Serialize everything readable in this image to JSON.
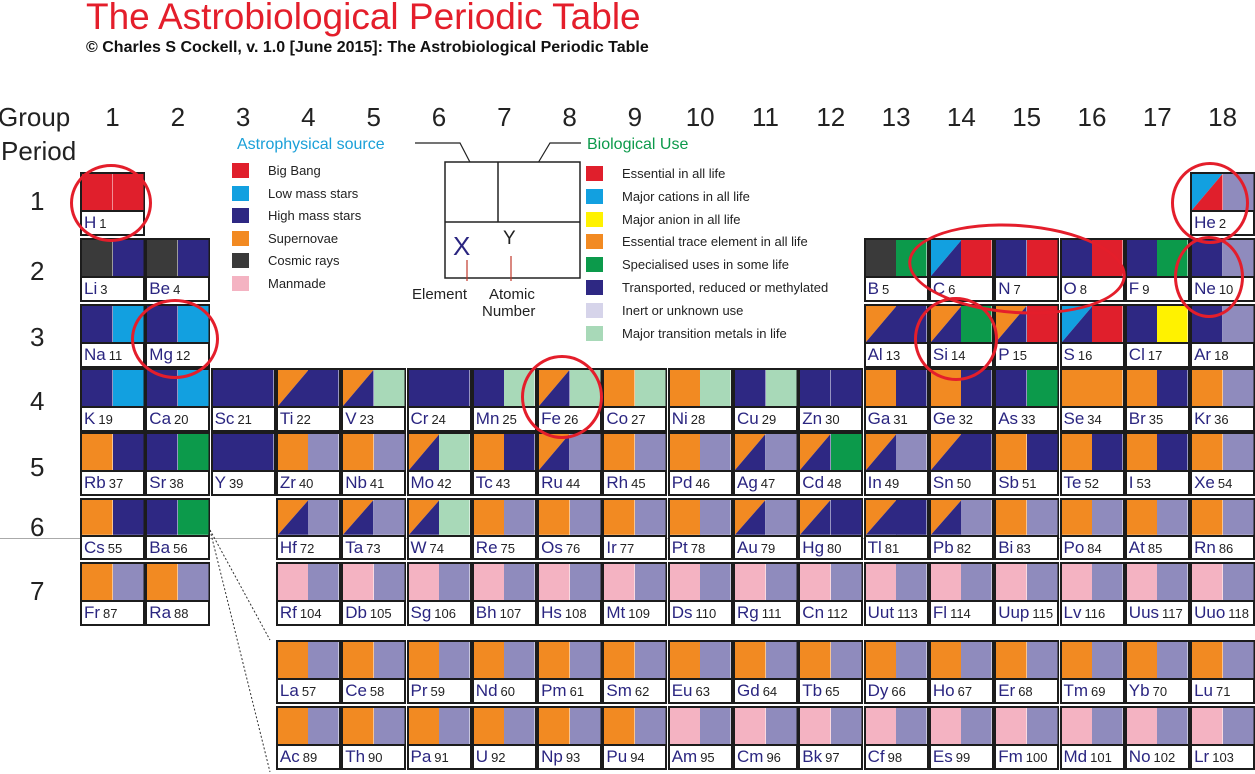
{
  "title": "The Astrobiological Periodic Table",
  "subtitle": "© Charles S Cockell, v. 1.0 [June 2015]: The Astrobiological Periodic Table",
  "labels": {
    "group": "Group",
    "period": "Period"
  },
  "groups": [
    "1",
    "2",
    "3",
    "4",
    "5",
    "6",
    "7",
    "8",
    "9",
    "10",
    "11",
    "12",
    "13",
    "14",
    "15",
    "16",
    "17",
    "18"
  ],
  "periods": [
    "1",
    "2",
    "3",
    "4",
    "5",
    "6",
    "7"
  ],
  "colors": {
    "R": "#e01f2c",
    "L": "#12a0e0",
    "D": "#2e2883",
    "O": "#f28a22",
    "K": "#3a3a3a",
    "P": "#f4b3c2",
    "Y": "#fff200",
    "G": "#0c9a4b",
    "V": "#8f8bbd",
    "M": "#a8d9b8",
    "W": "#ffffff"
  },
  "legend_source": {
    "title": "Astrophysical source",
    "title_color": "#1aa0d8",
    "items": [
      {
        "label": "Big Bang",
        "color": "#e01f2c"
      },
      {
        "label": "Low mass stars",
        "color": "#12a0e0"
      },
      {
        "label": "High mass stars",
        "color": "#2e2883"
      },
      {
        "label": "Supernovae",
        "color": "#f28a22"
      },
      {
        "label": "Cosmic rays",
        "color": "#3a3a3a"
      },
      {
        "label": "Manmade",
        "color": "#f4b3c2"
      }
    ]
  },
  "legend_use": {
    "title": "Biological Use",
    "title_color": "#0c9a4b",
    "items": [
      {
        "label": "Essential in all life",
        "color": "#e01f2c"
      },
      {
        "label": "Major cations in all life",
        "color": "#12a0e0"
      },
      {
        "label": "Major anion in all life",
        "color": "#fff200"
      },
      {
        "label": "Essential trace element in all life",
        "color": "#f28a22"
      },
      {
        "label": "Specialised uses in some life",
        "color": "#0c9a4b"
      },
      {
        "label": "Transported, reduced or methylated",
        "color": "#2e2883"
      },
      {
        "label": "Inert or unknown use",
        "color": "#d6d4ea"
      },
      {
        "label": "Major transition metals in life",
        "color": "#a8d9b8"
      }
    ]
  },
  "key": {
    "element_symbol": "X",
    "atomic_number": "Y",
    "element_label": "Element",
    "atomic_label": "Atomic",
    "number_label": "Number"
  },
  "elements": [
    {
      "s": "H",
      "n": "1",
      "g": 1,
      "p": 1,
      "a": "R",
      "b": "R"
    },
    {
      "s": "He",
      "n": "2",
      "g": 18,
      "p": 1,
      "a": "LR",
      "b": "V"
    },
    {
      "s": "Li",
      "n": "3",
      "g": 1,
      "p": 2,
      "a": "K",
      "b": "D"
    },
    {
      "s": "Be",
      "n": "4",
      "g": 2,
      "p": 2,
      "a": "K",
      "b": "D"
    },
    {
      "s": "B",
      "n": "5",
      "g": 13,
      "p": 2,
      "a": "K",
      "b": "G"
    },
    {
      "s": "C",
      "n": "6",
      "g": 14,
      "p": 2,
      "a": "LD",
      "b": "R"
    },
    {
      "s": "N",
      "n": "7",
      "g": 15,
      "p": 2,
      "a": "D",
      "b": "R"
    },
    {
      "s": "O",
      "n": "8",
      "g": 16,
      "p": 2,
      "a": "D",
      "b": "R"
    },
    {
      "s": "F",
      "n": "9",
      "g": 17,
      "p": 2,
      "a": "D",
      "b": "G"
    },
    {
      "s": "Ne",
      "n": "10",
      "g": 18,
      "p": 2,
      "a": "D",
      "b": "V"
    },
    {
      "s": "Na",
      "n": "11",
      "g": 1,
      "p": 3,
      "a": "D",
      "b": "L"
    },
    {
      "s": "Mg",
      "n": "12",
      "g": 2,
      "p": 3,
      "a": "D",
      "b": "L"
    },
    {
      "s": "Al",
      "n": "13",
      "g": 13,
      "p": 3,
      "a": "OD",
      "b": "D"
    },
    {
      "s": "Si",
      "n": "14",
      "g": 14,
      "p": 3,
      "a": "OD",
      "b": "G"
    },
    {
      "s": "P",
      "n": "15",
      "g": 15,
      "p": 3,
      "a": "OD",
      "b": "R"
    },
    {
      "s": "S",
      "n": "16",
      "g": 16,
      "p": 3,
      "a": "LD",
      "b": "R"
    },
    {
      "s": "Cl",
      "n": "17",
      "g": 17,
      "p": 3,
      "a": "D",
      "b": "Y"
    },
    {
      "s": "Ar",
      "n": "18",
      "g": 18,
      "p": 3,
      "a": "D",
      "b": "V"
    },
    {
      "s": "K",
      "n": "19",
      "g": 1,
      "p": 4,
      "a": "D",
      "b": "L"
    },
    {
      "s": "Ca",
      "n": "20",
      "g": 2,
      "p": 4,
      "a": "D",
      "b": "L"
    },
    {
      "s": "Sc",
      "n": "21",
      "g": 3,
      "p": 4,
      "a": "D",
      "b": "D"
    },
    {
      "s": "Ti",
      "n": "22",
      "g": 4,
      "p": 4,
      "a": "OD",
      "b": "D"
    },
    {
      "s": "V",
      "n": "23",
      "g": 5,
      "p": 4,
      "a": "OD",
      "b": "M"
    },
    {
      "s": "Cr",
      "n": "24",
      "g": 6,
      "p": 4,
      "a": "D",
      "b": "D"
    },
    {
      "s": "Mn",
      "n": "25",
      "g": 7,
      "p": 4,
      "a": "D",
      "b": "M"
    },
    {
      "s": "Fe",
      "n": "26",
      "g": 8,
      "p": 4,
      "a": "OD",
      "b": "M"
    },
    {
      "s": "Co",
      "n": "27",
      "g": 9,
      "p": 4,
      "a": "O",
      "b": "M"
    },
    {
      "s": "Ni",
      "n": "28",
      "g": 10,
      "p": 4,
      "a": "O",
      "b": "M"
    },
    {
      "s": "Cu",
      "n": "29",
      "g": 11,
      "p": 4,
      "a": "D",
      "b": "M"
    },
    {
      "s": "Zn",
      "n": "30",
      "g": 12,
      "p": 4,
      "a": "D",
      "b": "D"
    },
    {
      "s": "Ga",
      "n": "31",
      "g": 13,
      "p": 4,
      "a": "O",
      "b": "D"
    },
    {
      "s": "Ge",
      "n": "32",
      "g": 14,
      "p": 4,
      "a": "O",
      "b": "D"
    },
    {
      "s": "As",
      "n": "33",
      "g": 15,
      "p": 4,
      "a": "D",
      "b": "G"
    },
    {
      "s": "Se",
      "n": "34",
      "g": 16,
      "p": 4,
      "a": "O",
      "b": "O"
    },
    {
      "s": "Br",
      "n": "35",
      "g": 17,
      "p": 4,
      "a": "O",
      "b": "D"
    },
    {
      "s": "Kr",
      "n": "36",
      "g": 18,
      "p": 4,
      "a": "O",
      "b": "V"
    },
    {
      "s": "Rb",
      "n": "37",
      "g": 1,
      "p": 5,
      "a": "O",
      "b": "D"
    },
    {
      "s": "Sr",
      "n": "38",
      "g": 2,
      "p": 5,
      "a": "D",
      "b": "G"
    },
    {
      "s": "Y",
      "n": "39",
      "g": 3,
      "p": 5,
      "a": "D",
      "b": "D"
    },
    {
      "s": "Zr",
      "n": "40",
      "g": 4,
      "p": 5,
      "a": "O",
      "b": "V"
    },
    {
      "s": "Nb",
      "n": "41",
      "g": 5,
      "p": 5,
      "a": "O",
      "b": "V"
    },
    {
      "s": "Mo",
      "n": "42",
      "g": 6,
      "p": 5,
      "a": "OD",
      "b": "M"
    },
    {
      "s": "Tc",
      "n": "43",
      "g": 7,
      "p": 5,
      "a": "O",
      "b": "D"
    },
    {
      "s": "Ru",
      "n": "44",
      "g": 8,
      "p": 5,
      "a": "OD",
      "b": "V"
    },
    {
      "s": "Rh",
      "n": "45",
      "g": 9,
      "p": 5,
      "a": "O",
      "b": "V"
    },
    {
      "s": "Pd",
      "n": "46",
      "g": 10,
      "p": 5,
      "a": "O",
      "b": "V"
    },
    {
      "s": "Ag",
      "n": "47",
      "g": 11,
      "p": 5,
      "a": "OD",
      "b": "V"
    },
    {
      "s": "Cd",
      "n": "48",
      "g": 12,
      "p": 5,
      "a": "OD",
      "b": "G"
    },
    {
      "s": "In",
      "n": "49",
      "g": 13,
      "p": 5,
      "a": "OD",
      "b": "V"
    },
    {
      "s": "Sn",
      "n": "50",
      "g": 14,
      "p": 5,
      "a": "OD",
      "b": "D"
    },
    {
      "s": "Sb",
      "n": "51",
      "g": 15,
      "p": 5,
      "a": "O",
      "b": "D"
    },
    {
      "s": "Te",
      "n": "52",
      "g": 16,
      "p": 5,
      "a": "O",
      "b": "D"
    },
    {
      "s": "I",
      "n": "53",
      "g": 17,
      "p": 5,
      "a": "O",
      "b": "D"
    },
    {
      "s": "Xe",
      "n": "54",
      "g": 18,
      "p": 5,
      "a": "O",
      "b": "V"
    },
    {
      "s": "Cs",
      "n": "55",
      "g": 1,
      "p": 6,
      "a": "O",
      "b": "D"
    },
    {
      "s": "Ba",
      "n": "56",
      "g": 2,
      "p": 6,
      "a": "D",
      "b": "G"
    },
    {
      "s": "Hf",
      "n": "72",
      "g": 4,
      "p": 6,
      "a": "OD",
      "b": "V"
    },
    {
      "s": "Ta",
      "n": "73",
      "g": 5,
      "p": 6,
      "a": "OD",
      "b": "V"
    },
    {
      "s": "W",
      "n": "74",
      "g": 6,
      "p": 6,
      "a": "OD",
      "b": "M"
    },
    {
      "s": "Re",
      "n": "75",
      "g": 7,
      "p": 6,
      "a": "O",
      "b": "V"
    },
    {
      "s": "Os",
      "n": "76",
      "g": 8,
      "p": 6,
      "a": "O",
      "b": "V"
    },
    {
      "s": "Ir",
      "n": "77",
      "g": 9,
      "p": 6,
      "a": "O",
      "b": "V"
    },
    {
      "s": "Pt",
      "n": "78",
      "g": 10,
      "p": 6,
      "a": "O",
      "b": "V"
    },
    {
      "s": "Au",
      "n": "79",
      "g": 11,
      "p": 6,
      "a": "OD",
      "b": "V"
    },
    {
      "s": "Hg",
      "n": "80",
      "g": 12,
      "p": 6,
      "a": "OD",
      "b": "D"
    },
    {
      "s": "Tl",
      "n": "81",
      "g": 13,
      "p": 6,
      "a": "OD",
      "b": "D"
    },
    {
      "s": "Pb",
      "n": "82",
      "g": 14,
      "p": 6,
      "a": "OD",
      "b": "V"
    },
    {
      "s": "Bi",
      "n": "83",
      "g": 15,
      "p": 6,
      "a": "O",
      "b": "V"
    },
    {
      "s": "Po",
      "n": "84",
      "g": 16,
      "p": 6,
      "a": "O",
      "b": "V"
    },
    {
      "s": "At",
      "n": "85",
      "g": 17,
      "p": 6,
      "a": "O",
      "b": "V"
    },
    {
      "s": "Rn",
      "n": "86",
      "g": 18,
      "p": 6,
      "a": "O",
      "b": "V"
    },
    {
      "s": "Fr",
      "n": "87",
      "g": 1,
      "p": 7,
      "a": "O",
      "b": "V"
    },
    {
      "s": "Ra",
      "n": "88",
      "g": 2,
      "p": 7,
      "a": "O",
      "b": "V"
    },
    {
      "s": "Rf",
      "n": "104",
      "g": 4,
      "p": 7,
      "a": "P",
      "b": "V"
    },
    {
      "s": "Db",
      "n": "105",
      "g": 5,
      "p": 7,
      "a": "P",
      "b": "V"
    },
    {
      "s": "Sg",
      "n": "106",
      "g": 6,
      "p": 7,
      "a": "P",
      "b": "V"
    },
    {
      "s": "Bh",
      "n": "107",
      "g": 7,
      "p": 7,
      "a": "P",
      "b": "V"
    },
    {
      "s": "Hs",
      "n": "108",
      "g": 8,
      "p": 7,
      "a": "P",
      "b": "V"
    },
    {
      "s": "Mt",
      "n": "109",
      "g": 9,
      "p": 7,
      "a": "P",
      "b": "V"
    },
    {
      "s": "Ds",
      "n": "110",
      "g": 10,
      "p": 7,
      "a": "P",
      "b": "V"
    },
    {
      "s": "Rg",
      "n": "111",
      "g": 11,
      "p": 7,
      "a": "P",
      "b": "V"
    },
    {
      "s": "Cn",
      "n": "112",
      "g": 12,
      "p": 7,
      "a": "P",
      "b": "V"
    },
    {
      "s": "Uut",
      "n": "113",
      "g": 13,
      "p": 7,
      "a": "P",
      "b": "V"
    },
    {
      "s": "Fl",
      "n": "114",
      "g": 14,
      "p": 7,
      "a": "P",
      "b": "V"
    },
    {
      "s": "Uup",
      "n": "115",
      "g": 15,
      "p": 7,
      "a": "P",
      "b": "V"
    },
    {
      "s": "Lv",
      "n": "116",
      "g": 16,
      "p": 7,
      "a": "P",
      "b": "V"
    },
    {
      "s": "Uus",
      "n": "117",
      "g": 17,
      "p": 7,
      "a": "P",
      "b": "V"
    },
    {
      "s": "Uuo",
      "n": "118",
      "g": 18,
      "p": 7,
      "a": "P",
      "b": "V"
    },
    {
      "s": "La",
      "n": "57",
      "g": 4,
      "p": 8,
      "a": "O",
      "b": "V"
    },
    {
      "s": "Ce",
      "n": "58",
      "g": 5,
      "p": 8,
      "a": "O",
      "b": "V"
    },
    {
      "s": "Pr",
      "n": "59",
      "g": 6,
      "p": 8,
      "a": "O",
      "b": "V"
    },
    {
      "s": "Nd",
      "n": "60",
      "g": 7,
      "p": 8,
      "a": "O",
      "b": "V"
    },
    {
      "s": "Pm",
      "n": "61",
      "g": 8,
      "p": 8,
      "a": "O",
      "b": "V"
    },
    {
      "s": "Sm",
      "n": "62",
      "g": 9,
      "p": 8,
      "a": "O",
      "b": "V"
    },
    {
      "s": "Eu",
      "n": "63",
      "g": 10,
      "p": 8,
      "a": "O",
      "b": "V"
    },
    {
      "s": "Gd",
      "n": "64",
      "g": 11,
      "p": 8,
      "a": "O",
      "b": "V"
    },
    {
      "s": "Tb",
      "n": "65",
      "g": 12,
      "p": 8,
      "a": "O",
      "b": "V"
    },
    {
      "s": "Dy",
      "n": "66",
      "g": 13,
      "p": 8,
      "a": "O",
      "b": "V"
    },
    {
      "s": "Ho",
      "n": "67",
      "g": 14,
      "p": 8,
      "a": "O",
      "b": "V"
    },
    {
      "s": "Er",
      "n": "68",
      "g": 15,
      "p": 8,
      "a": "O",
      "b": "V"
    },
    {
      "s": "Tm",
      "n": "69",
      "g": 16,
      "p": 8,
      "a": "O",
      "b": "V"
    },
    {
      "s": "Yb",
      "n": "70",
      "g": 17,
      "p": 8,
      "a": "O",
      "b": "V"
    },
    {
      "s": "Lu",
      "n": "71",
      "g": 18,
      "p": 8,
      "a": "O",
      "b": "V"
    },
    {
      "s": "Ac",
      "n": "89",
      "g": 4,
      "p": 9,
      "a": "O",
      "b": "V"
    },
    {
      "s": "Th",
      "n": "90",
      "g": 5,
      "p": 9,
      "a": "O",
      "b": "V"
    },
    {
      "s": "Pa",
      "n": "91",
      "g": 6,
      "p": 9,
      "a": "O",
      "b": "V"
    },
    {
      "s": "U",
      "n": "92",
      "g": 7,
      "p": 9,
      "a": "O",
      "b": "V"
    },
    {
      "s": "Np",
      "n": "93",
      "g": 8,
      "p": 9,
      "a": "O",
      "b": "V"
    },
    {
      "s": "Pu",
      "n": "94",
      "g": 9,
      "p": 9,
      "a": "O",
      "b": "V"
    },
    {
      "s": "Am",
      "n": "95",
      "g": 10,
      "p": 9,
      "a": "P",
      "b": "V"
    },
    {
      "s": "Cm",
      "n": "96",
      "g": 11,
      "p": 9,
      "a": "P",
      "b": "V"
    },
    {
      "s": "Bk",
      "n": "97",
      "g": 12,
      "p": 9,
      "a": "P",
      "b": "V"
    },
    {
      "s": "Cf",
      "n": "98",
      "g": 13,
      "p": 9,
      "a": "P",
      "b": "V"
    },
    {
      "s": "Es",
      "n": "99",
      "g": 14,
      "p": 9,
      "a": "P",
      "b": "V"
    },
    {
      "s": "Fm",
      "n": "100",
      "g": 15,
      "p": 9,
      "a": "P",
      "b": "V"
    },
    {
      "s": "Md",
      "n": "101",
      "g": 16,
      "p": 9,
      "a": "P",
      "b": "V"
    },
    {
      "s": "No",
      "n": "102",
      "g": 17,
      "p": 9,
      "a": "P",
      "b": "V"
    },
    {
      "s": "Lr",
      "n": "103",
      "g": 18,
      "p": 9,
      "a": "P",
      "b": "V"
    }
  ],
  "highlighted": [
    "H",
    "He",
    "Ne",
    "Mg",
    "Fe",
    "Si",
    "C-N-O"
  ]
}
